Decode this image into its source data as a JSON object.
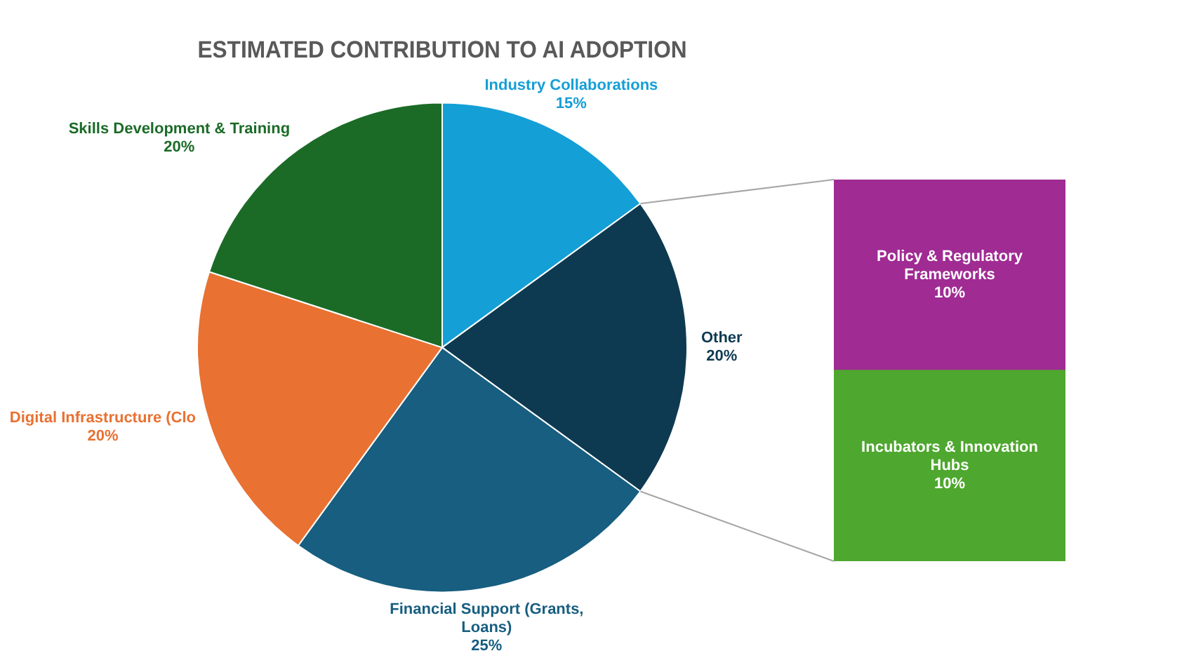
{
  "chart_data": [
    {
      "type": "pie",
      "title": "ESTIMATED CONTRIBUTION TO AI ADOPTION",
      "categories": [
        "Industry Collaborations",
        "Other",
        "Financial Support (Grants, Loans)",
        "Digital Infrastructure (Clo",
        "Skills Development & Training"
      ],
      "values": [
        15,
        20,
        25,
        20,
        20
      ],
      "colors": [
        "#149fd6",
        "#0e3a51",
        "#175e80",
        "#e97132",
        "#1b6b27"
      ],
      "value_labels": [
        "15%",
        "20%",
        "25%",
        "20%",
        "20%"
      ]
    },
    {
      "type": "bar",
      "stacked": true,
      "categories": [
        null
      ],
      "series": [
        {
          "name": "Incubators & Innovation Hubs",
          "color": "#4ea72e",
          "values": [
            10
          ],
          "value_labels": [
            "10%"
          ]
        },
        {
          "name": "Policy & Regulatory Frameworks",
          "color": "#a02b93",
          "values": [
            10
          ],
          "value_labels": [
            "10%"
          ]
        }
      ]
    }
  ]
}
